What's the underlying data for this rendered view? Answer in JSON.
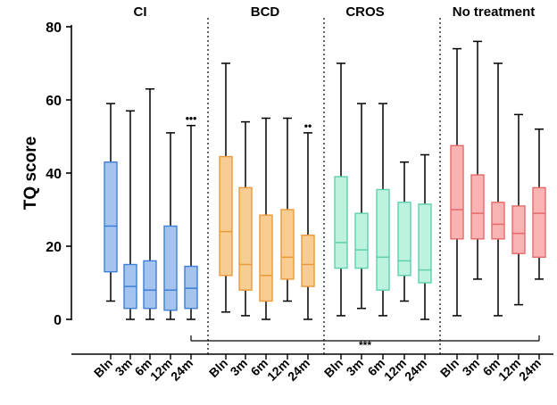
{
  "chart_data": {
    "type": "boxplot",
    "ylabel": "TQ score",
    "xlabel": "",
    "ylim": [
      0,
      80
    ],
    "yticks": [
      0,
      20,
      40,
      60,
      80
    ],
    "timepoints": [
      "Bln",
      "3m",
      "6m",
      "12m",
      "24m"
    ],
    "groups": [
      {
        "name": "CI",
        "fill": "#a4c4ee",
        "stroke": "#3f7fd6",
        "boxes": [
          {
            "timepoint": "Bln",
            "min": 5,
            "q1": 13,
            "median": 25.5,
            "q3": 43,
            "max": 59
          },
          {
            "timepoint": "3m",
            "min": 0,
            "q1": 3,
            "median": 9,
            "q3": 15,
            "max": 57
          },
          {
            "timepoint": "6m",
            "min": 0,
            "q1": 3,
            "median": 8,
            "q3": 16,
            "max": 63
          },
          {
            "timepoint": "12m",
            "min": 0,
            "q1": 2.5,
            "median": 8,
            "q3": 25.5,
            "max": 51
          },
          {
            "timepoint": "24m",
            "min": 0,
            "q1": 3,
            "median": 8.5,
            "q3": 14.5,
            "max": 53,
            "annotation": "•••"
          }
        ]
      },
      {
        "name": "BCD",
        "fill": "#f7cd94",
        "stroke": "#ea9a3a",
        "boxes": [
          {
            "timepoint": "Bln",
            "min": 2,
            "q1": 12,
            "median": 24,
            "q3": 44.5,
            "max": 70
          },
          {
            "timepoint": "3m",
            "min": 1,
            "q1": 8,
            "median": 15,
            "q3": 36,
            "max": 54
          },
          {
            "timepoint": "6m",
            "min": 0,
            "q1": 5,
            "median": 12,
            "q3": 28.5,
            "max": 55
          },
          {
            "timepoint": "12m",
            "min": 5,
            "q1": 11,
            "median": 17,
            "q3": 30,
            "max": 55
          },
          {
            "timepoint": "24m",
            "min": 0,
            "q1": 9,
            "median": 15,
            "q3": 23,
            "max": 51,
            "annotation": "••"
          }
        ]
      },
      {
        "name": "CROS",
        "fill": "#bdf2df",
        "stroke": "#5fcfa8",
        "boxes": [
          {
            "timepoint": "Bln",
            "min": 1,
            "q1": 14,
            "median": 21,
            "q3": 39,
            "max": 70
          },
          {
            "timepoint": "3m",
            "min": 3,
            "q1": 14,
            "median": 19,
            "q3": 29,
            "max": 59
          },
          {
            "timepoint": "6m",
            "min": 1,
            "q1": 8,
            "median": 17,
            "q3": 35.5,
            "max": 59
          },
          {
            "timepoint": "12m",
            "min": 5,
            "q1": 12,
            "median": 16,
            "q3": 32,
            "max": 43
          },
          {
            "timepoint": "24m",
            "min": 0,
            "q1": 10,
            "median": 13.5,
            "q3": 31.5,
            "max": 45
          }
        ]
      },
      {
        "name": "No treatment",
        "fill": "#f9b3b3",
        "stroke": "#e36a6a",
        "boxes": [
          {
            "timepoint": "Bln",
            "min": 1,
            "q1": 22,
            "median": 30,
            "q3": 47.5,
            "max": 74
          },
          {
            "timepoint": "3m",
            "min": 11,
            "q1": 22,
            "median": 29,
            "q3": 39.5,
            "max": 76
          },
          {
            "timepoint": "6m",
            "min": 1,
            "q1": 22,
            "median": 26,
            "q3": 32,
            "max": 70
          },
          {
            "timepoint": "12m",
            "min": 4,
            "q1": 18,
            "median": 23.5,
            "q3": 31,
            "max": 56
          },
          {
            "timepoint": "24m",
            "min": 11,
            "q1": 17,
            "median": 29,
            "q3": 36,
            "max": 52
          }
        ]
      }
    ],
    "comparison": {
      "label": "***",
      "from_group": "CI",
      "from_timepoint": "24m",
      "to_group": "No treatment",
      "to_timepoint": "24m"
    }
  }
}
